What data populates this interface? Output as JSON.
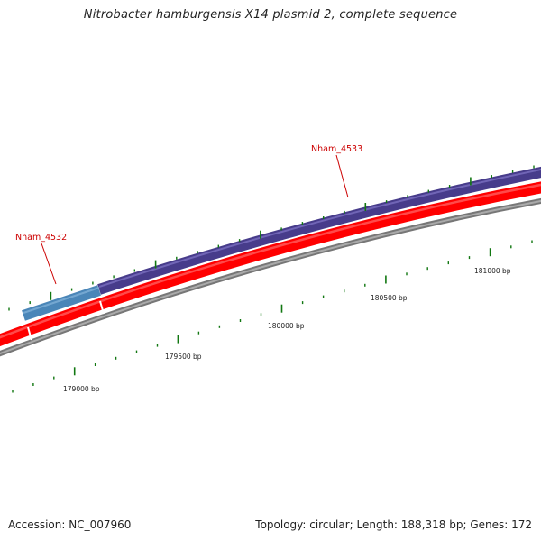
{
  "title": "Nitrobacter hamburgensis X14 plasmid 2, complete sequence",
  "footer": {
    "accession": "Accession: NC_007960",
    "summary": "Topology: circular; Length: 188,318 bp; Genes: 172"
  },
  "scale": {
    "major_labels": [
      "179000 bp",
      "179500 bp",
      "180000 bp",
      "180500 bp",
      "181000 bp"
    ]
  },
  "genes": [
    {
      "name": "Nham_4532",
      "color": "#4a86b8"
    },
    {
      "name": "Nham_4533",
      "color": "#473c8b"
    }
  ],
  "colors": {
    "cds_track": "#ff0000",
    "backbone": "#808080",
    "ticks": "#117711",
    "label": "#cc0000"
  }
}
